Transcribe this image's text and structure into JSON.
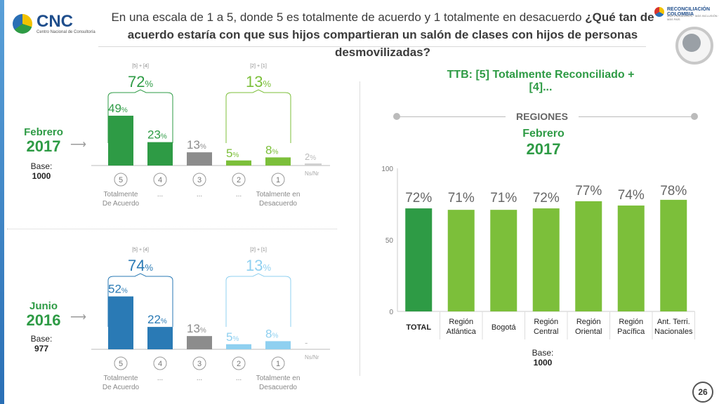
{
  "header": {
    "logo": "CNC",
    "logo_sub": "Centro Nacional de Consultoría",
    "partner_logo": "RECONCILIACIÓN COLOMBIA",
    "partner_sub": "MÁS CIUDADANOS · MÁS INCLUSIÓN · MÁS PAÍS",
    "title_plain": "En una escala de 1 a 5, donde 5 es totalmente de acuerdo y 1 totalmente en desacuerdo",
    "title_question": "¿Qué tan de acuerdo estaría con que sus hijos compartieran un salón de clases con hijos de personas desmovilizadas?"
  },
  "footer": {
    "page": "26"
  },
  "colors": {
    "green": "#2e9b45",
    "green_light": "#7cbf3a",
    "blue": "#2a7ab5",
    "blue_light": "#8fd0f0",
    "gray": "#8c8c8c",
    "na": "#cfcfcf"
  },
  "chart_data": [
    {
      "type": "bar",
      "period": {
        "month": "Febrero",
        "year": "2017"
      },
      "base": {
        "label": "Base:",
        "value": "1000"
      },
      "categories": [
        "5",
        "4",
        "3",
        "2",
        "1",
        "Ns/Nr"
      ],
      "values": [
        49,
        23,
        13,
        5,
        8,
        2
      ],
      "value_labels": [
        "49%",
        "23%",
        "13%",
        "5%",
        "8%",
        "2%"
      ],
      "category_labels": [
        "Totalmente De Acuerdo",
        "...",
        "...",
        "...",
        "Totalmente en Desacuerdo",
        ""
      ],
      "groups": [
        {
          "label": "[5] + [4]",
          "value": "72%"
        },
        {
          "label": "[2] + [1]",
          "value": "13%"
        }
      ]
    },
    {
      "type": "bar",
      "period": {
        "month": "Junio",
        "year": "2016"
      },
      "base": {
        "label": "Base:",
        "value": "977"
      },
      "categories": [
        "5",
        "4",
        "3",
        "2",
        "1",
        "Ns/Nr"
      ],
      "values": [
        52,
        22,
        13,
        5,
        8,
        0
      ],
      "value_labels": [
        "52%",
        "22%",
        "13%",
        "5%",
        "8%",
        "-"
      ],
      "category_labels": [
        "Totalmente De Acuerdo",
        "...",
        "...",
        "...",
        "Totalmente en Desacuerdo",
        ""
      ],
      "groups": [
        {
          "label": "[5] + [4]",
          "value": "74%"
        },
        {
          "label": "[2] + [1]",
          "value": "13%"
        }
      ]
    },
    {
      "type": "bar",
      "title": "TTB: [5] Totalmente Reconciliado + [4]...",
      "section": "REGIONES",
      "period": {
        "month": "Febrero",
        "year": "2017"
      },
      "base": {
        "label": "Base:",
        "value": "1000"
      },
      "categories": [
        "TOTAL",
        "Región Atlántica",
        "Bogotá",
        "Región Central",
        "Región Oriental",
        "Región Pacífica",
        "Ant. Terri. Nacionales"
      ],
      "values": [
        72,
        71,
        71,
        72,
        77,
        74,
        78
      ],
      "value_labels": [
        "72%",
        "71%",
        "71%",
        "72%",
        "77%",
        "74%",
        "78%"
      ],
      "ylim": [
        0,
        100
      ],
      "yticks": [
        "0",
        "50",
        "100"
      ],
      "grid": false
    }
  ]
}
